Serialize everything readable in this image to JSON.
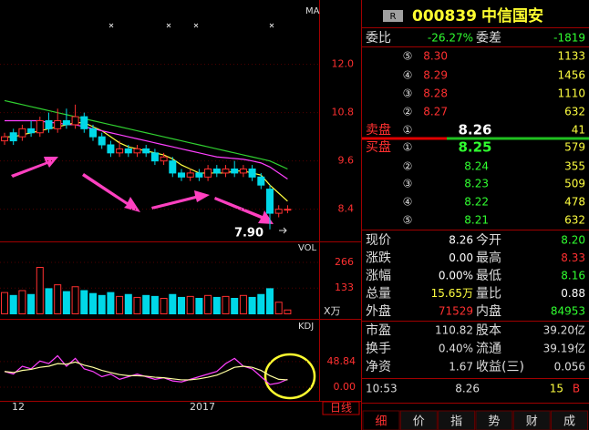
{
  "chart": {
    "price": {
      "label": "MA",
      "ylim": [
        7.6,
        13.6
      ],
      "yticks": [
        {
          "value": 12,
          "label": "12.0"
        },
        {
          "value": 10.8,
          "label": "10.8"
        },
        {
          "value": 9.6,
          "label": "9.6"
        },
        {
          "value": 8.4,
          "label": "8.4"
        }
      ],
      "up_color": "#ff3030",
      "down_color": "#00d8e8",
      "candles": [
        [
          10.1,
          10.2,
          10.3,
          10.0
        ],
        [
          10.3,
          10.1,
          10.4,
          10.0
        ],
        [
          10.2,
          10.4,
          10.5,
          10.1
        ],
        [
          10.4,
          10.3,
          10.6,
          10.2
        ],
        [
          10.3,
          10.6,
          10.7,
          10.2
        ],
        [
          10.6,
          10.4,
          10.8,
          10.3
        ],
        [
          10.4,
          10.6,
          10.9,
          10.3
        ],
        [
          10.6,
          10.5,
          10.9,
          10.4
        ],
        [
          10.5,
          10.7,
          11.0,
          10.4
        ],
        [
          10.7,
          10.4,
          10.8,
          10.3
        ],
        [
          10.4,
          10.2,
          10.5,
          10.1
        ],
        [
          10.2,
          10.0,
          10.3,
          9.9
        ],
        [
          10.0,
          9.8,
          10.1,
          9.7
        ],
        [
          9.8,
          9.9,
          10.1,
          9.7
        ],
        [
          9.9,
          9.8,
          10.0,
          9.7
        ],
        [
          9.8,
          9.9,
          10.0,
          9.7
        ],
        [
          9.9,
          9.8,
          10.0,
          9.7
        ],
        [
          9.8,
          9.6,
          9.9,
          9.5
        ],
        [
          9.6,
          9.7,
          9.8,
          9.5
        ],
        [
          9.6,
          9.3,
          9.7,
          9.2
        ],
        [
          9.3,
          9.2,
          9.4,
          9.1
        ],
        [
          9.2,
          9.3,
          9.4,
          9.1
        ],
        [
          9.3,
          9.2,
          9.4,
          9.1
        ],
        [
          9.2,
          9.4,
          9.5,
          9.1
        ],
        [
          9.4,
          9.3,
          9.5,
          9.2
        ],
        [
          9.3,
          9.4,
          9.5,
          9.2
        ],
        [
          9.4,
          9.3,
          9.6,
          9.2
        ],
        [
          9.3,
          9.4,
          9.5,
          9.2
        ],
        [
          9.4,
          9.2,
          9.5,
          9.1
        ],
        [
          9.2,
          9.0,
          9.3,
          8.9
        ],
        [
          8.9,
          8.3,
          9.0,
          7.9
        ],
        [
          8.3,
          8.4,
          8.5,
          8.2
        ],
        [
          8.4,
          8.4,
          8.5,
          8.3
        ]
      ],
      "ma": [
        {
          "color": "#ffff40",
          "values": [
            10.2,
            10.2,
            10.25,
            10.3,
            10.35,
            10.4,
            10.45,
            10.5,
            10.55,
            10.55,
            10.45,
            10.35,
            10.2,
            10.05,
            9.95,
            9.9,
            9.85,
            9.8,
            9.75,
            9.65,
            9.5,
            9.4,
            9.3,
            9.3,
            9.3,
            9.3,
            9.35,
            9.35,
            9.3,
            9.25,
            9.0,
            8.8,
            8.6
          ]
        },
        {
          "color": "#ff40ff",
          "values": [
            10.6,
            10.6,
            10.6,
            10.6,
            10.6,
            10.55,
            10.55,
            10.5,
            10.5,
            10.45,
            10.4,
            10.35,
            10.3,
            10.25,
            10.2,
            10.15,
            10.1,
            10.05,
            10.0,
            9.95,
            9.9,
            9.85,
            9.8,
            9.75,
            9.7,
            9.68,
            9.66,
            9.64,
            9.6,
            9.55,
            9.45,
            9.3,
            9.15
          ]
        },
        {
          "color": "#30d030",
          "values": [
            11.1,
            11.05,
            11.0,
            10.95,
            10.9,
            10.85,
            10.8,
            10.75,
            10.7,
            10.65,
            10.6,
            10.55,
            10.5,
            10.45,
            10.4,
            10.35,
            10.3,
            10.25,
            10.2,
            10.15,
            10.1,
            10.05,
            10.0,
            9.95,
            9.9,
            9.85,
            9.8,
            9.75,
            9.7,
            9.65,
            9.6,
            9.5,
            9.4
          ]
        }
      ],
      "low_mark": {
        "value": 7.9,
        "label": "7.90"
      }
    },
    "volume": {
      "label": "VOL",
      "unit": "X万",
      "ylim": [
        0,
        360
      ],
      "yticks": [
        266,
        133
      ],
      "values": [
        110,
        95,
        120,
        100,
        240,
        130,
        150,
        115,
        140,
        120,
        105,
        95,
        110,
        90,
        100,
        85,
        95,
        90,
        80,
        100,
        85,
        90,
        80,
        95,
        85,
        90,
        80,
        95,
        85,
        100,
        130,
        60,
        20
      ]
    },
    "kdj": {
      "label": "KDJ",
      "ylim": [
        0,
        127
      ],
      "yticks": [
        {
          "value": 48.84,
          "label": "48.84"
        },
        {
          "value": 0,
          "label": "0.00"
        }
      ],
      "series": [
        {
          "color": "#ff40ff",
          "values": [
            30,
            25,
            40,
            35,
            50,
            45,
            60,
            40,
            55,
            35,
            30,
            20,
            25,
            15,
            20,
            25,
            20,
            15,
            18,
            12,
            10,
            15,
            20,
            25,
            30,
            45,
            55,
            40,
            35,
            20,
            5,
            8,
            15
          ]
        },
        {
          "color": "#ffffa0",
          "values": [
            30,
            28,
            32,
            34,
            38,
            40,
            45,
            44,
            48,
            42,
            38,
            32,
            28,
            24,
            22,
            22,
            21,
            19,
            18,
            16,
            14,
            14,
            16,
            19,
            23,
            30,
            38,
            40,
            38,
            32,
            22,
            15,
            14
          ]
        }
      ]
    },
    "x_labels": [
      "12",
      "2017"
    ],
    "period": "日线"
  },
  "quote": {
    "badge": "R",
    "code": "000839",
    "name": "中信国安",
    "weibi_label": "委比",
    "weibi": "-26.27%",
    "weicha_label": "委差",
    "weicha": "-1819",
    "asks": [
      {
        "no": "⑤",
        "price": "8.30",
        "vol": "1133"
      },
      {
        "no": "④",
        "price": "8.29",
        "vol": "1456"
      },
      {
        "no": "③",
        "price": "8.28",
        "vol": "1110"
      },
      {
        "no": "②",
        "price": "8.27",
        "vol": "632"
      },
      {
        "side": "卖盘",
        "no": "①",
        "price": "8.26",
        "vol": "41"
      }
    ],
    "bids": [
      {
        "side": "买盘",
        "no": "①",
        "price": "8.25",
        "vol": "579"
      },
      {
        "no": "②",
        "price": "8.24",
        "vol": "355"
      },
      {
        "no": "③",
        "price": "8.23",
        "vol": "509"
      },
      {
        "no": "④",
        "price": "8.22",
        "vol": "478"
      },
      {
        "no": "⑤",
        "price": "8.21",
        "vol": "632"
      }
    ],
    "stats": [
      [
        "现价",
        "8.26",
        "#ffffff",
        "今开",
        "8.20",
        "#30ff30"
      ],
      [
        "涨跌",
        "0.00",
        "#ffffff",
        "最高",
        "8.33",
        "#ff3030"
      ],
      [
        "涨幅",
        "0.00%",
        "#ffffff",
        "最低",
        "8.16",
        "#30ff30"
      ],
      [
        "总量",
        "15.65万",
        "#ffff40",
        "量比",
        "0.88",
        "#ffffff"
      ],
      [
        "外盘",
        "71529",
        "#ff3030",
        "内盘",
        "84953",
        "#30ff30"
      ]
    ],
    "finance": [
      [
        "市盈",
        "110.82",
        "股本",
        "39.20亿"
      ],
      [
        "换手",
        "0.40%",
        "流通",
        "39.19亿"
      ],
      [
        "净资",
        "1.67",
        "收益(三)",
        "0.056"
      ]
    ],
    "tick": {
      "time": "10:53",
      "price": "8.26",
      "vol": "15",
      "dir": "B"
    },
    "tabs": [
      "细",
      "价",
      "指",
      "势",
      "财",
      "成"
    ]
  }
}
